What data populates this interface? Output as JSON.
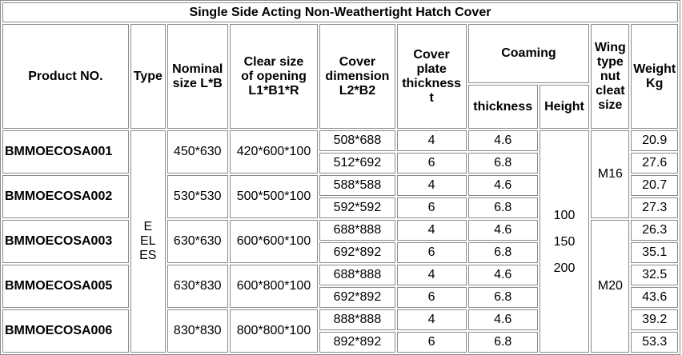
{
  "title": "Single Side Acting Non-Weathertight Hatch Cover",
  "headers": {
    "product_no": "Product NO.",
    "type": "Type",
    "nominal": [
      "Nominal",
      "size L*B"
    ],
    "clear": [
      "Clear size",
      "of opening",
      "L1*B1*R"
    ],
    "cover_dim": [
      "Cover",
      "dimension",
      "L2*B2"
    ],
    "plate": [
      "Cover",
      "plate",
      "thickness",
      "t"
    ],
    "coaming": "Coaming",
    "coaming_thickness": "thickness",
    "coaming_height": "Height",
    "wing": [
      "Wing",
      "type",
      "nut",
      "cleat",
      "size"
    ],
    "weight": [
      "Weight",
      "Kg"
    ]
  },
  "type_values": [
    "E",
    "EL",
    "ES"
  ],
  "height_values": [
    "100",
    "150",
    "200"
  ],
  "cleat_sizes": [
    "M16",
    "M20"
  ],
  "products": [
    {
      "no": "BMMOECOSA001",
      "nominal": "450*630",
      "clear": "420*600*100",
      "rows": [
        {
          "cover": "508*688",
          "plate": "4",
          "coaming": "4.6",
          "weight": "20.9"
        },
        {
          "cover": "512*692",
          "plate": "6",
          "coaming": "6.8",
          "weight": "27.6"
        }
      ]
    },
    {
      "no": "BMMOECOSA002",
      "nominal": "530*530",
      "clear": "500*500*100",
      "rows": [
        {
          "cover": "588*588",
          "plate": "4",
          "coaming": "4.6",
          "weight": "20.7"
        },
        {
          "cover": "592*592",
          "plate": "6",
          "coaming": "6.8",
          "weight": "27.3"
        }
      ]
    },
    {
      "no": "BMMOECOSA003",
      "nominal": "630*630",
      "clear": "600*600*100",
      "rows": [
        {
          "cover": "688*888",
          "plate": "4",
          "coaming": "4.6",
          "weight": "26.3"
        },
        {
          "cover": "692*892",
          "plate": "6",
          "coaming": "6.8",
          "weight": "35.1"
        }
      ]
    },
    {
      "no": "BMMOECOSA005",
      "nominal": "630*830",
      "clear": "600*800*100",
      "rows": [
        {
          "cover": "688*888",
          "plate": "4",
          "coaming": "4.6",
          "weight": "32.5"
        },
        {
          "cover": "692*892",
          "plate": "6",
          "coaming": "6.8",
          "weight": "43.6"
        }
      ]
    },
    {
      "no": "BMMOECOSA006",
      "nominal": "830*830",
      "clear": "800*800*100",
      "rows": [
        {
          "cover": "888*888",
          "plate": "4",
          "coaming": "4.6",
          "weight": "39.2"
        },
        {
          "cover": "892*892",
          "plate": "6",
          "coaming": "6.8",
          "weight": "53.3"
        }
      ]
    }
  ]
}
